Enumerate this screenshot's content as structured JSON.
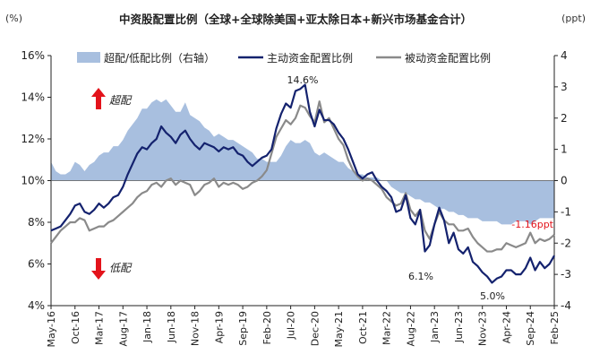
{
  "chart_data": {
    "type": "line",
    "title": "中资股配置比例（全球+全球除美国+亚太除日本+新兴市场基金合计）",
    "left_unit": "(%)",
    "right_unit": "(ppt)",
    "left_axis": {
      "min": 4,
      "max": 16,
      "ticks": [
        "4%",
        "6%",
        "8%",
        "10%",
        "12%",
        "14%",
        "16%"
      ],
      "tick_values": [
        4,
        6,
        8,
        10,
        12,
        14,
        16
      ]
    },
    "right_axis": {
      "min": -4,
      "max": 4,
      "ticks": [
        "-4",
        "-3",
        "-2",
        "-1",
        "0",
        "1",
        "2",
        "3",
        "4"
      ],
      "tick_values": [
        -4,
        -3,
        -2,
        -1,
        0,
        1,
        2,
        3,
        4
      ]
    },
    "x_labels": [
      "May-16",
      "Oct-16",
      "Mar-17",
      "Aug-17",
      "Jan-18",
      "Jun-18",
      "Nov-18",
      "Apr-19",
      "Sep-19",
      "Feb-20",
      "Jul-20",
      "Dec-20",
      "May-21",
      "Oct-21",
      "Mar-22",
      "Aug-22",
      "Jan-23",
      "Jun-23",
      "Nov-23",
      "Apr-24",
      "Sep-24",
      "Feb-25"
    ],
    "side_labels": {
      "over": "超配",
      "under": "低配"
    },
    "legend": [
      "超配/低配比例（右轴）",
      "主动资金配置比例",
      "被动资金配置比例"
    ],
    "annotations": {
      "peak": "14.6%",
      "mid_low": "6.1%",
      "low": "5.0%",
      "latest": "-1.16ppt"
    },
    "colors": {
      "area": "#a8bfdf",
      "active": "#14226e",
      "passive": "#8a8a8a",
      "red": "#e3131b",
      "axis": "#222222"
    },
    "series": [
      {
        "name": "主动资金配置比例",
        "axis": "left",
        "values": [
          7.6,
          7.7,
          7.8,
          8.1,
          8.4,
          8.8,
          8.9,
          8.5,
          8.4,
          8.6,
          8.9,
          8.7,
          8.9,
          9.2,
          9.3,
          9.7,
          10.3,
          10.8,
          11.3,
          11.6,
          11.5,
          11.8,
          12.0,
          12.6,
          12.3,
          12.1,
          11.8,
          12.2,
          12.4,
          12.0,
          11.7,
          11.5,
          11.8,
          11.7,
          11.6,
          11.4,
          11.6,
          11.5,
          11.6,
          11.3,
          11.2,
          10.9,
          10.7,
          10.9,
          11.1,
          11.2,
          11.5,
          12.5,
          13.2,
          13.7,
          13.5,
          14.3,
          14.4,
          14.6,
          13.3,
          12.6,
          13.4,
          12.9,
          12.9,
          12.7,
          12.3,
          12.0,
          11.5,
          10.9,
          10.3,
          10.1,
          10.3,
          10.4,
          10.0,
          9.7,
          9.5,
          9.2,
          8.5,
          8.6,
          9.3,
          8.2,
          7.9,
          8.6,
          6.6,
          6.9,
          7.9,
          8.7,
          8.1,
          7.0,
          7.5,
          6.7,
          6.5,
          6.8,
          6.1,
          5.9,
          5.6,
          5.4,
          5.1,
          5.3,
          5.4,
          5.7,
          5.7,
          5.5,
          5.5,
          5.8,
          6.3,
          5.7,
          6.1,
          5.8,
          6.0,
          6.4
        ]
      },
      {
        "name": "被动资金配置比例",
        "axis": "left",
        "values": [
          7.0,
          7.3,
          7.6,
          7.8,
          8.0,
          8.0,
          8.2,
          8.1,
          7.6,
          7.7,
          7.8,
          7.8,
          8.0,
          8.1,
          8.3,
          8.5,
          8.7,
          8.9,
          9.2,
          9.4,
          9.5,
          9.8,
          9.9,
          9.7,
          10.0,
          10.1,
          9.8,
          10.0,
          9.9,
          9.8,
          9.3,
          9.5,
          9.8,
          9.9,
          10.1,
          9.7,
          9.9,
          9.8,
          9.9,
          9.8,
          9.6,
          9.7,
          9.9,
          10.0,
          10.2,
          10.5,
          11.3,
          12.1,
          12.5,
          12.9,
          12.7,
          13.0,
          13.6,
          13.5,
          13.1,
          12.8,
          13.8,
          12.8,
          13.0,
          12.5,
          12.0,
          11.7,
          11.0,
          10.5,
          10.2,
          10.0,
          10.1,
          10.0,
          9.8,
          9.6,
          9.2,
          9.0,
          8.8,
          8.9,
          9.4,
          8.6,
          8.3,
          8.6,
          7.6,
          7.2,
          7.9,
          8.5,
          8.1,
          7.9,
          7.9,
          7.6,
          7.6,
          7.7,
          7.3,
          7.0,
          6.8,
          6.6,
          6.6,
          6.7,
          6.7,
          7.0,
          6.9,
          6.8,
          6.9,
          7.0,
          7.5,
          7.0,
          7.2,
          7.1,
          7.2,
          7.4
        ]
      },
      {
        "name": "超配/低配比例（右轴）",
        "axis": "right",
        "values": [
          0.6,
          0.3,
          0.2,
          0.2,
          0.3,
          0.6,
          0.5,
          0.3,
          0.5,
          0.6,
          0.8,
          0.9,
          0.9,
          1.1,
          1.1,
          1.3,
          1.6,
          1.8,
          2.0,
          2.3,
          2.3,
          2.5,
          2.6,
          2.5,
          2.6,
          2.4,
          2.2,
          2.2,
          2.5,
          2.1,
          2.0,
          1.9,
          1.7,
          1.6,
          1.4,
          1.5,
          1.4,
          1.3,
          1.3,
          1.2,
          1.1,
          1.0,
          0.9,
          0.7,
          0.7,
          0.6,
          0.6,
          0.6,
          0.8,
          1.1,
          1.3,
          1.2,
          1.2,
          1.3,
          1.2,
          0.9,
          0.8,
          0.9,
          0.8,
          0.7,
          0.6,
          0.6,
          0.4,
          0.3,
          0.2,
          0.2,
          0.1,
          0.1,
          0.1,
          0.0,
          0.0,
          -0.2,
          -0.3,
          -0.4,
          -0.4,
          -0.5,
          -0.6,
          -0.6,
          -0.7,
          -0.7,
          -0.8,
          -0.9,
          -0.9,
          -1.0,
          -1.0,
          -1.1,
          -1.1,
          -1.2,
          -1.2,
          -1.2,
          -1.3,
          -1.3,
          -1.3,
          -1.3,
          -1.4,
          -1.4,
          -1.4,
          -1.3,
          -1.3,
          -1.3,
          -1.4,
          -1.3,
          -1.2,
          -1.2,
          -1.2,
          -1.2
        ]
      }
    ]
  }
}
